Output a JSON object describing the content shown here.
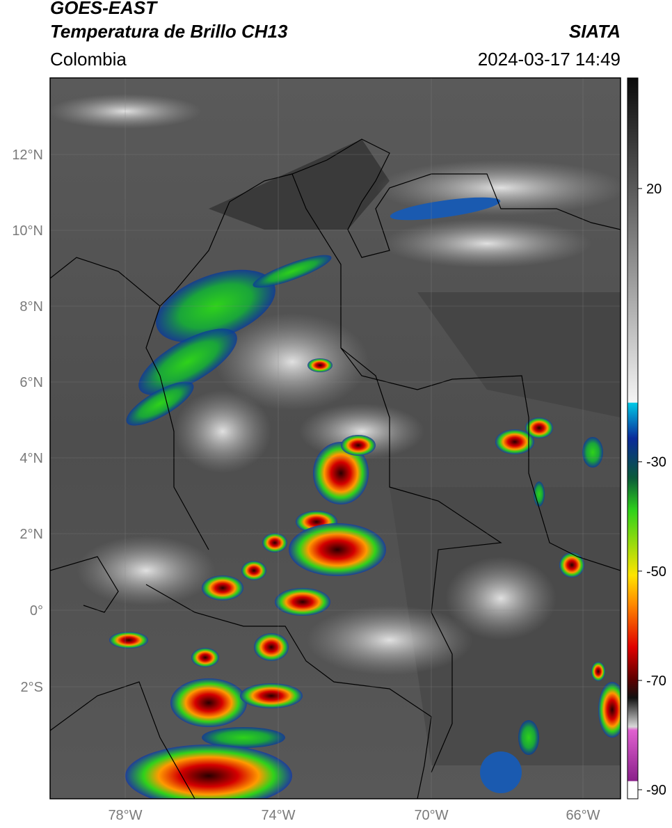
{
  "header": {
    "title": "GOES-EAST",
    "subtitle": "Temperatura de Brillo CH13",
    "region": "Colombia",
    "organization": "SIATA",
    "datetime": "2024-03-17 14:49"
  },
  "axes": {
    "lat_labels": [
      "12°N",
      "10°N",
      "8°N",
      "6°N",
      "4°N",
      "2°N",
      "0°",
      "2°S"
    ],
    "lon_labels": [
      "78°W",
      "74°W",
      "70°W",
      "66°W"
    ]
  },
  "colorbar": {
    "tick_labels": [
      "20",
      "-30",
      "-50",
      "-70",
      "-90"
    ],
    "tick_values": [
      20,
      -30,
      -50,
      -70,
      -90
    ],
    "colors": {
      "warm_gray_top": "#0a0a0a",
      "warm_gray_bottom": "#f4f4f4",
      "cyan": "#00c8e6",
      "blue": "#0a2a9a",
      "green": "#2fd21a",
      "yellow": "#ffe400",
      "orange": "#ff8a00",
      "red": "#e00000",
      "dark_red": "#5a0000",
      "magenta": "#e060d0",
      "purple": "#8a208a"
    }
  }
}
